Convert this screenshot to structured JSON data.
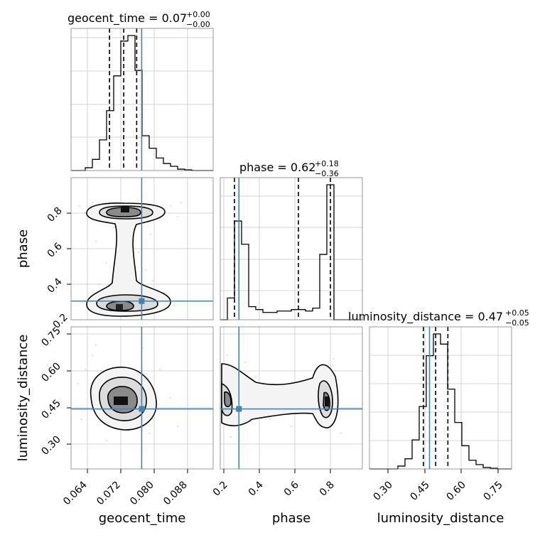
{
  "chart_data": {
    "type": "corner",
    "parameters": [
      "geocent_time",
      "phase",
      "luminosity_distance"
    ],
    "truth_color": "#4682b4",
    "titles": [
      {
        "param": "geocent_time",
        "text": "geocent_time = 0.07",
        "sup": "+0.00",
        "sub": "−0.00"
      },
      {
        "param": "phase",
        "text": "phase = 0.62",
        "sup": "+0.18",
        "sub": "−0.36"
      },
      {
        "param": "luminosity_distance",
        "text": "luminosity_distance = 0.47",
        "sup": "+0.05",
        "sub": "−0.05"
      }
    ],
    "xlabels": [
      "geocent_time",
      "phase",
      "luminosity_distance"
    ],
    "ylabels": [
      "phase",
      "luminosity_distance"
    ],
    "ticks": {
      "geocent_time": [
        "0.064",
        "0.072",
        "0.080",
        "0.088"
      ],
      "phase": [
        "0.2",
        "0.4",
        "0.6",
        "0.8"
      ],
      "luminosity_distance": [
        "0.30",
        "0.45",
        "0.60",
        "0.75"
      ]
    },
    "ranges": {
      "geocent_time": [
        0.0596,
        0.0936
      ],
      "phase": [
        0.18,
        0.98
      ],
      "luminosity_distance": [
        0.2,
        0.78
      ]
    },
    "truths": {
      "geocent_time": 0.0765,
      "phase": 0.285,
      "luminosity_distance": 0.445
    },
    "quantiles": {
      "geocent_time": [
        0.0688,
        0.0722,
        0.0753
      ],
      "phase": [
        0.26,
        0.62,
        0.8
      ],
      "luminosity_distance": [
        0.42,
        0.47,
        0.52
      ]
    },
    "marginals": {
      "geocent_time": {
        "edges": [
          0.0596,
          0.0613,
          0.063,
          0.0647,
          0.0664,
          0.0681,
          0.0698,
          0.0715,
          0.0732,
          0.0749,
          0.0766,
          0.0783,
          0.08,
          0.0817,
          0.0834,
          0.0851,
          0.0868,
          0.0885,
          0.0902,
          0.0919,
          0.0936
        ],
        "counts": [
          0,
          0,
          0.02,
          0.08,
          0.22,
          0.43,
          0.68,
          0.93,
          0.97,
          0.72,
          0.25,
          0.16,
          0.09,
          0.05,
          0.03,
          0.01,
          0.005,
          0,
          0,
          0
        ]
      },
      "phase": {
        "edges": [
          0.18,
          0.22,
          0.26,
          0.3,
          0.34,
          0.38,
          0.42,
          0.46,
          0.5,
          0.54,
          0.58,
          0.62,
          0.66,
          0.7,
          0.74,
          0.78,
          0.82,
          0.86,
          0.9,
          0.94,
          0.98
        ],
        "counts": [
          0,
          0.15,
          0.68,
          0.52,
          0.09,
          0.07,
          0.05,
          0.05,
          0.06,
          0.06,
          0.07,
          0.07,
          0.06,
          0.08,
          0.45,
          0.93,
          0,
          0,
          0,
          0
        ]
      },
      "luminosity_distance": {
        "edges": [
          0.2,
          0.229,
          0.258,
          0.287,
          0.316,
          0.345,
          0.374,
          0.403,
          0.432,
          0.461,
          0.49,
          0.519,
          0.548,
          0.577,
          0.606,
          0.635,
          0.664,
          0.693,
          0.722,
          0.751,
          0.78
        ],
        "counts": [
          0,
          0,
          0,
          0,
          0.02,
          0.07,
          0.2,
          0.43,
          0.78,
          0.93,
          0.86,
          0.55,
          0.32,
          0.16,
          0.06,
          0.03,
          0.01,
          0.005,
          0,
          0
        ]
      }
    }
  }
}
